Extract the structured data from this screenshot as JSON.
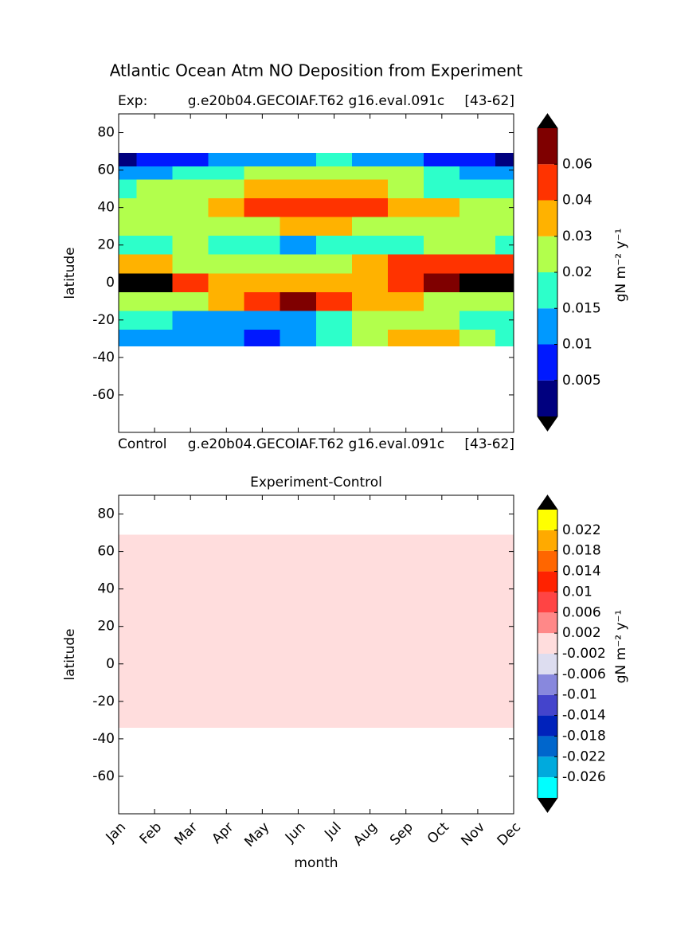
{
  "title": "Atlantic Ocean Atm NO Deposition from Experiment",
  "chart_data": [
    {
      "type": "heatmap",
      "title_left": "Exp:",
      "title_center": "g.e20b04.GECOIAF.T62 g16.eval.091c",
      "title_right": "[43-62]",
      "ylabel": "latitude",
      "ylim": [
        -80,
        90
      ],
      "yticks": [
        80,
        60,
        40,
        20,
        0,
        -20,
        -40,
        -60
      ],
      "lat_edges": [
        -34,
        -25,
        -15,
        -5,
        5,
        15,
        25,
        35,
        45,
        55,
        62,
        69
      ],
      "values": [
        [
          0.012,
          0.012,
          0.012,
          0.01,
          0.008,
          0.012,
          0.018,
          0.025,
          0.035,
          0.032,
          0.025,
          0.018
        ],
        [
          0.018,
          0.017,
          0.014,
          0.013,
          0.012,
          0.014,
          0.018,
          0.022,
          0.022,
          0.02,
          0.017,
          0.017
        ],
        [
          0.025,
          0.022,
          0.025,
          0.035,
          0.045,
          0.065,
          0.045,
          0.035,
          0.03,
          0.025,
          0.022,
          0.025
        ],
        [
          0.08,
          0.075,
          0.05,
          0.035,
          0.035,
          0.035,
          0.035,
          0.035,
          0.045,
          0.06,
          0.08,
          0.08
        ],
        [
          0.03,
          0.03,
          0.025,
          0.022,
          0.022,
          0.025,
          0.028,
          0.032,
          0.04,
          0.045,
          0.045,
          0.045
        ],
        [
          0.018,
          0.018,
          0.02,
          0.017,
          0.016,
          0.012,
          0.016,
          0.017,
          0.018,
          0.02,
          0.02,
          0.018
        ],
        [
          0.022,
          0.022,
          0.025,
          0.025,
          0.028,
          0.03,
          0.03,
          0.025,
          0.022,
          0.022,
          0.022,
          0.022
        ],
        [
          0.025,
          0.025,
          0.028,
          0.035,
          0.045,
          0.045,
          0.045,
          0.04,
          0.035,
          0.03,
          0.028,
          0.025
        ],
        [
          0.018,
          0.022,
          0.022,
          0.025,
          0.03,
          0.035,
          0.035,
          0.03,
          0.025,
          0.018,
          0.017,
          0.016
        ],
        [
          0.012,
          0.014,
          0.016,
          0.018,
          0.02,
          0.022,
          0.025,
          0.022,
          0.02,
          0.015,
          0.012,
          0.012
        ],
        [
          0.004,
          0.007,
          0.009,
          0.011,
          0.012,
          0.014,
          0.016,
          0.013,
          0.012,
          0.008,
          0.005,
          0.004
        ]
      ],
      "colorbar": {
        "label": "gN m⁻² y⁻¹",
        "levels": [
          0.005,
          0.01,
          0.015,
          0.02,
          0.03,
          0.04,
          0.06
        ],
        "lim": [
          0,
          0.07
        ],
        "colors": [
          "#00007f",
          "#0019ff",
          "#0099ff",
          "#2dffca",
          "#b2ff4c",
          "#ffb200",
          "#ff3300",
          "#7f0000"
        ],
        "over_color": "#000000",
        "under_color": "#000000"
      }
    },
    {
      "type": "fill",
      "title_left": "Control",
      "title_center": "g.e20b04.GECOIAF.T62 g16.eval.091c",
      "title_right": "[43-62]",
      "title": "Experiment-Control",
      "ylabel": "latitude",
      "xlabel": "month",
      "categories": [
        "Jan",
        "Feb",
        "Mar",
        "Apr",
        "May",
        "Jun",
        "Jul",
        "Aug",
        "Sep",
        "Oct",
        "Nov",
        "Dec"
      ],
      "ylim": [
        -80,
        90
      ],
      "yticks": [
        80,
        60,
        40,
        20,
        0,
        -20,
        -40,
        -60
      ],
      "lat_range": [
        -34,
        69
      ],
      "value": 0,
      "colorbar": {
        "label": "gN m⁻² y⁻¹",
        "levels": [
          -0.026,
          -0.022,
          -0.018,
          -0.014,
          -0.01,
          -0.006,
          -0.002,
          0.002,
          0.006,
          0.01,
          0.014,
          0.018,
          0.022
        ],
        "lim": [
          -0.03,
          0.026
        ],
        "colors": [
          "#00ffff",
          "#00aadd",
          "#0066cc",
          "#0022bb",
          "#4444cc",
          "#8888dd",
          "#ddddf0",
          "#ffdddd",
          "#ff8888",
          "#ff4444",
          "#ff2200",
          "#ff6600",
          "#ffaa00",
          "#ffff00"
        ],
        "over_color": "#000000",
        "under_color": "#000000"
      }
    }
  ]
}
